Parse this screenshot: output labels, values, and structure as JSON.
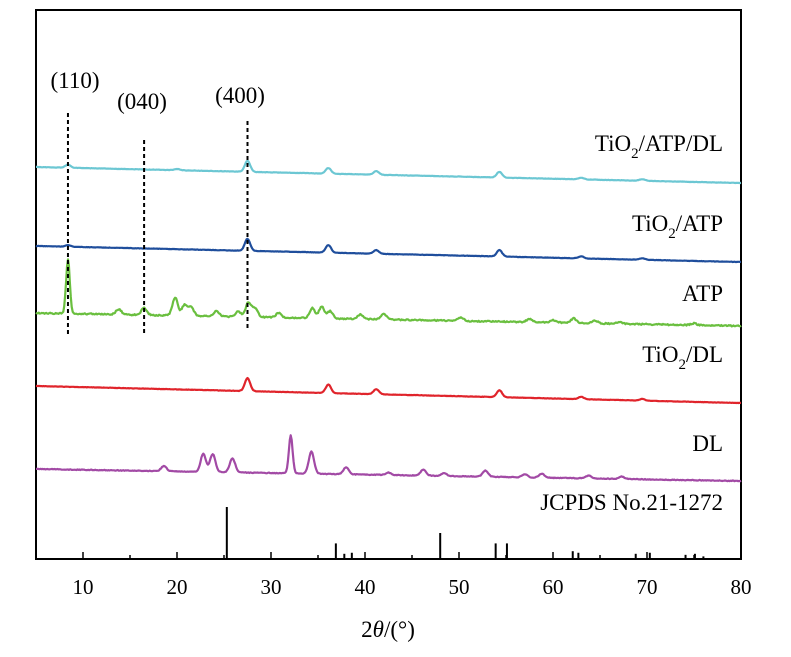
{
  "chart_data": {
    "type": "line",
    "title": "",
    "xlabel": "2θ/(°)",
    "xlabel_parts": {
      "symbol": "2",
      "var": "θ",
      "unit": "/(°)"
    },
    "ylabel": "",
    "xlim": [
      5,
      80
    ],
    "xticks": [
      10,
      20,
      30,
      40,
      50,
      60,
      70,
      80
    ],
    "grid": false,
    "legend": "none",
    "series": [
      {
        "name": "TiO2/ATP/DL",
        "label_parts": {
          "pre": "TiO",
          "sub": "2",
          "post": "/ATP/DL"
        },
        "color": "#6cc7d3",
        "peaks": [
          [
            8.4,
            0.15
          ],
          [
            20.0,
            0.06
          ],
          [
            27.5,
            0.55
          ],
          [
            36.1,
            0.28
          ],
          [
            41.2,
            0.18
          ],
          [
            54.3,
            0.28
          ],
          [
            63.0,
            0.08
          ],
          [
            69.5,
            0.08
          ]
        ]
      },
      {
        "name": "TiO2/ATP",
        "label_parts": {
          "pre": "TiO",
          "sub": "2",
          "post": "/ATP"
        },
        "color": "#1f4e9c",
        "peaks": [
          [
            8.4,
            0.08
          ],
          [
            27.5,
            0.6
          ],
          [
            36.1,
            0.38
          ],
          [
            41.2,
            0.18
          ],
          [
            54.3,
            0.32
          ],
          [
            63.0,
            0.1
          ],
          [
            69.5,
            0.08
          ]
        ]
      },
      {
        "name": "ATP",
        "label_parts": {
          "pre": "ATP",
          "sub": "",
          "post": ""
        },
        "color": "#6abf3f",
        "peaks": [
          [
            8.4,
            3.0
          ],
          [
            13.8,
            0.3
          ],
          [
            16.5,
            0.4
          ],
          [
            19.8,
            1.0
          ],
          [
            20.8,
            0.6
          ],
          [
            21.5,
            0.5
          ],
          [
            24.2,
            0.3
          ],
          [
            26.5,
            0.3
          ],
          [
            27.6,
            0.8
          ],
          [
            28.3,
            0.5
          ],
          [
            30.8,
            0.25
          ],
          [
            34.4,
            0.55
          ],
          [
            35.4,
            0.65
          ],
          [
            36.3,
            0.4
          ],
          [
            39.5,
            0.25
          ],
          [
            42.0,
            0.3
          ],
          [
            50.2,
            0.2
          ],
          [
            57.5,
            0.18
          ],
          [
            60.0,
            0.15
          ],
          [
            62.2,
            0.25
          ],
          [
            64.5,
            0.15
          ],
          [
            67.0,
            0.1
          ],
          [
            75.0,
            0.1
          ]
        ]
      },
      {
        "name": "TiO2/DL",
        "label_parts": {
          "pre": "TiO",
          "sub": "2",
          "post": "/DL"
        },
        "color": "#e0242b",
        "peaks": [
          [
            27.5,
            0.65
          ],
          [
            36.1,
            0.42
          ],
          [
            41.2,
            0.25
          ],
          [
            54.3,
            0.35
          ],
          [
            63.0,
            0.12
          ],
          [
            69.5,
            0.08
          ]
        ]
      },
      {
        "name": "DL",
        "label_parts": {
          "pre": "DL",
          "sub": "",
          "post": ""
        },
        "color": "#a24aa5",
        "peaks": [
          [
            18.6,
            0.25
          ],
          [
            22.8,
            0.9
          ],
          [
            23.8,
            0.9
          ],
          [
            25.9,
            0.7
          ],
          [
            32.1,
            1.9
          ],
          [
            34.3,
            1.1
          ],
          [
            38.0,
            0.35
          ],
          [
            42.5,
            0.12
          ],
          [
            46.2,
            0.3
          ],
          [
            48.4,
            0.15
          ],
          [
            52.8,
            0.3
          ],
          [
            57.0,
            0.15
          ],
          [
            58.8,
            0.2
          ],
          [
            63.8,
            0.15
          ],
          [
            67.3,
            0.12
          ]
        ]
      }
    ],
    "reference": {
      "name": "JCPDS No.21-1272",
      "lines": [
        [
          25.3,
          1.0
        ],
        [
          36.9,
          0.3
        ],
        [
          37.8,
          0.1
        ],
        [
          38.6,
          0.12
        ],
        [
          48.0,
          0.5
        ],
        [
          53.9,
          0.3
        ],
        [
          55.1,
          0.3
        ],
        [
          62.1,
          0.15
        ],
        [
          62.7,
          0.12
        ],
        [
          68.8,
          0.1
        ],
        [
          70.3,
          0.12
        ],
        [
          74.1,
          0.08
        ],
        [
          75.1,
          0.1
        ],
        [
          76.0,
          0.05
        ]
      ]
    },
    "annotations": [
      {
        "label": "(110)",
        "x": 8.4
      },
      {
        "label": "(040)",
        "x": 16.5
      },
      {
        "label": "(400)",
        "x": 27.5
      }
    ]
  }
}
